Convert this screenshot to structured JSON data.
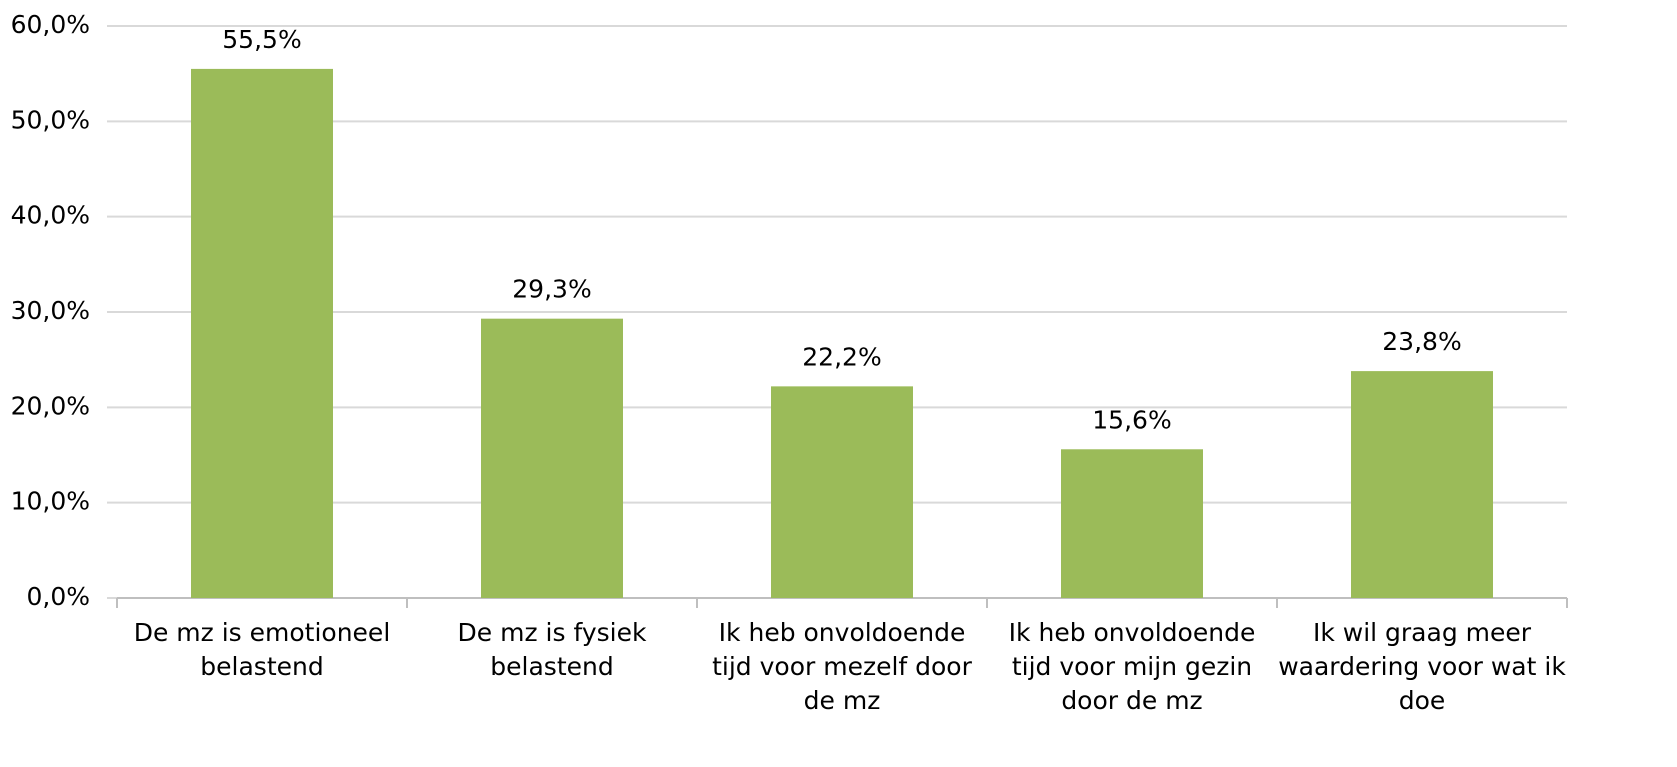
{
  "chart_data": {
    "type": "bar",
    "categories": [
      "De mz is emotioneel belastend",
      "De mz is fysiek belastend",
      "Ik heb onvoldoende tijd voor mezelf door de mz",
      "Ik heb onvoldoende tijd voor mijn gezin door de mz",
      "Ik wil graag meer waardering voor wat ik doe"
    ],
    "values": [
      55.5,
      29.3,
      22.2,
      15.6,
      23.8
    ],
    "value_labels": [
      "55,5%",
      "29,3%",
      "22,2%",
      "15,6%",
      "23,8%"
    ],
    "color": "#9bbb59",
    "ylim": [
      0,
      60
    ],
    "yticks": [
      {
        "value": 0,
        "label": "0,0%"
      },
      {
        "value": 10,
        "label": "10,0%"
      },
      {
        "value": 20,
        "label": "20,0%"
      },
      {
        "value": 30,
        "label": "30,0%"
      },
      {
        "value": 40,
        "label": "40,0%"
      },
      {
        "value": 50,
        "label": "50,0%"
      },
      {
        "value": 60,
        "label": "60,0%"
      }
    ],
    "grid": true
  }
}
